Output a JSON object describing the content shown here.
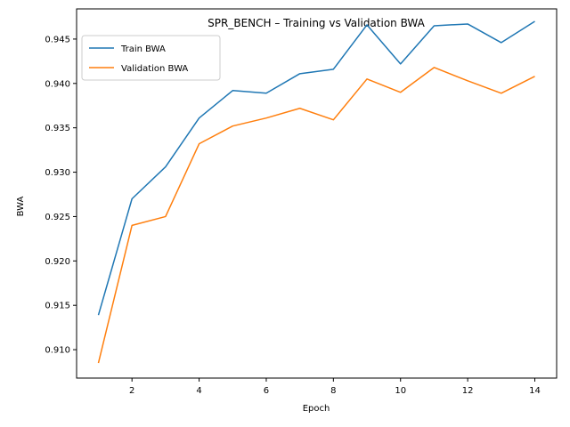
{
  "chart_data": {
    "type": "line",
    "title": "SPR_BENCH – Training vs Validation BWA",
    "xlabel": "Epoch",
    "ylabel": "BWA",
    "x": [
      1,
      2,
      3,
      4,
      5,
      6,
      7,
      8,
      9,
      10,
      11,
      12,
      13,
      14
    ],
    "xlim": [
      0.35,
      14.65
    ],
    "ylim": [
      0.9068,
      0.9484
    ],
    "xticks": [
      2,
      4,
      6,
      8,
      10,
      12,
      14
    ],
    "xtick_labels": [
      "2",
      "4",
      "6",
      "8",
      "10",
      "12",
      "14"
    ],
    "yticks": [
      0.91,
      0.915,
      0.92,
      0.925,
      0.93,
      0.935,
      0.94,
      0.945
    ],
    "ytick_labels": [
      "0.910",
      "0.915",
      "0.920",
      "0.925",
      "0.930",
      "0.935",
      "0.940",
      "0.945"
    ],
    "grid": false,
    "legend_position": "top-left",
    "series": [
      {
        "name": "Train BWA",
        "color": "#1f77b4",
        "values": [
          0.9139,
          0.927,
          0.9306,
          0.9361,
          0.9392,
          0.9389,
          0.9411,
          0.9416,
          0.9466,
          0.9422,
          0.9465,
          0.9467,
          0.9446,
          0.947
        ]
      },
      {
        "name": "Validation BWA",
        "color": "#ff7f0e",
        "values": [
          0.9085,
          0.924,
          0.925,
          0.9332,
          0.9352,
          0.9361,
          0.9372,
          0.9359,
          0.9405,
          0.939,
          0.9418,
          0.9403,
          0.9389,
          0.9408
        ]
      }
    ]
  }
}
